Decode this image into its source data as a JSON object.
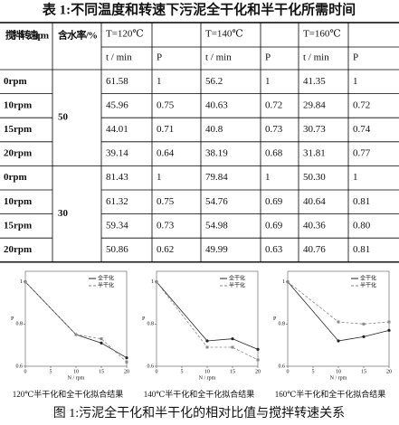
{
  "title": "表 1:不同温度和转速下污泥全干化和半干化所需时间",
  "table": {
    "head": {
      "speed": "搅拌转速/rpm",
      "moisture": "含水率/%",
      "temps": [
        "T=120℃",
        "T=140℃",
        "T=160℃"
      ],
      "t": "t / min",
      "p": "P"
    },
    "groups": [
      {
        "moisture": "50",
        "rows": [
          [
            "0rpm",
            "61.58",
            "1",
            "56.2",
            "1",
            "41.35",
            "1"
          ],
          [
            "10rpm",
            "45.96",
            "0.75",
            "40.63",
            "0.72",
            "29.84",
            "0.72"
          ],
          [
            "15rpm",
            "44.01",
            "0.71",
            "40.8",
            "0.73",
            "30.73",
            "0.74"
          ],
          [
            "20rpm",
            "39.14",
            "0.64",
            "38.19",
            "0.68",
            "31.81",
            "0.77"
          ]
        ]
      },
      {
        "moisture": "30",
        "rows": [
          [
            "0rpm",
            "81.43",
            "1",
            "79.84",
            "1",
            "50.30",
            "1"
          ],
          [
            "10rpm",
            "61.32",
            "0.75",
            "54.76",
            "0.69",
            "40.64",
            "0.81"
          ],
          [
            "15rpm",
            "59.34",
            "0.73",
            "54.98",
            "0.69",
            "40.36",
            "0.80"
          ],
          [
            "20rpm",
            "50.86",
            "0.62",
            "49.99",
            "0.63",
            "40.76",
            "0.81"
          ]
        ]
      }
    ]
  },
  "figures": [
    {
      "type": "line",
      "caption": "120℃半干化和全干化拟合结果",
      "x_label": "N / rpm",
      "y_label": "P",
      "x": [
        0,
        10,
        15,
        20
      ],
      "xlim": [
        0,
        20
      ],
      "xticks": [
        0,
        5,
        10,
        15,
        20
      ],
      "ylim": [
        0.6,
        1.05
      ],
      "yticks": [
        0.6,
        0.8,
        1
      ],
      "series": [
        {
          "name": "全干化",
          "color": "#222222",
          "values": [
            1,
            0.75,
            0.71,
            0.64
          ]
        },
        {
          "name": "半干化",
          "color": "#888888",
          "values": [
            1,
            0.75,
            0.73,
            0.62
          ]
        }
      ]
    },
    {
      "type": "line",
      "caption": "140℃半干化和全干化拟合结果",
      "x_label": "N / rpm",
      "y_label": "P",
      "x": [
        0,
        10,
        15,
        20
      ],
      "xlim": [
        0,
        20
      ],
      "xticks": [
        0,
        5,
        10,
        15,
        20
      ],
      "ylim": [
        0.6,
        1.05
      ],
      "yticks": [
        0.6,
        0.8,
        1
      ],
      "series": [
        {
          "name": "全干化",
          "color": "#222222",
          "values": [
            1,
            0.72,
            0.73,
            0.68
          ]
        },
        {
          "name": "半干化",
          "color": "#888888",
          "values": [
            1,
            0.69,
            0.69,
            0.63
          ]
        }
      ]
    },
    {
      "type": "line",
      "caption": "160℃半干化和全干化拟合结果",
      "x_label": "N / rpm",
      "y_label": "P",
      "x": [
        0,
        10,
        15,
        20
      ],
      "xlim": [
        0,
        20
      ],
      "xticks": [
        0,
        5,
        10,
        15,
        20
      ],
      "ylim": [
        0.6,
        1.05
      ],
      "yticks": [
        0.6,
        0.8,
        1
      ],
      "series": [
        {
          "name": "全干化",
          "color": "#222222",
          "values": [
            1,
            0.72,
            0.74,
            0.77
          ]
        },
        {
          "name": "半干化",
          "color": "#888888",
          "values": [
            1,
            0.81,
            0.8,
            0.81
          ]
        }
      ]
    }
  ],
  "figure_caption": "图 1:污泥全干化和半干化的相对比值与搅拌转速关系"
}
